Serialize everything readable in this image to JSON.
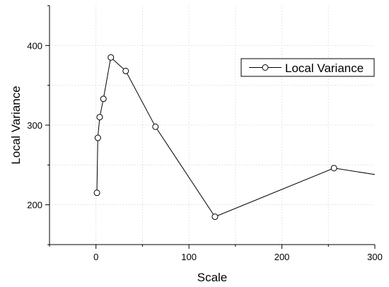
{
  "chart_data": {
    "type": "line",
    "title": "",
    "xlabel": "Scale",
    "ylabel": "Local Variance",
    "xlim": [
      -50,
      300
    ],
    "ylim": [
      150,
      450
    ],
    "x_ticks": [
      0,
      100,
      200,
      300
    ],
    "x_minor_ticks": [
      -50,
      50,
      150,
      250
    ],
    "y_ticks": [
      200,
      300,
      400
    ],
    "y_minor_ticks": [
      150,
      250,
      350,
      450
    ],
    "grid": "dotted",
    "legend_position": "top-right",
    "series": [
      {
        "name": "Local Variance",
        "marker": "open-circle",
        "color": "#000000",
        "points": [
          {
            "x": 1,
            "y": 215
          },
          {
            "x": 2,
            "y": 284
          },
          {
            "x": 4,
            "y": 310
          },
          {
            "x": 8,
            "y": 333
          },
          {
            "x": 16,
            "y": 385
          },
          {
            "x": 32,
            "y": 368
          },
          {
            "x": 64,
            "y": 298
          },
          {
            "x": 128,
            "y": 185
          },
          {
            "x": 256,
            "y": 246
          },
          {
            "x": 300,
            "y": 238
          }
        ]
      }
    ]
  }
}
